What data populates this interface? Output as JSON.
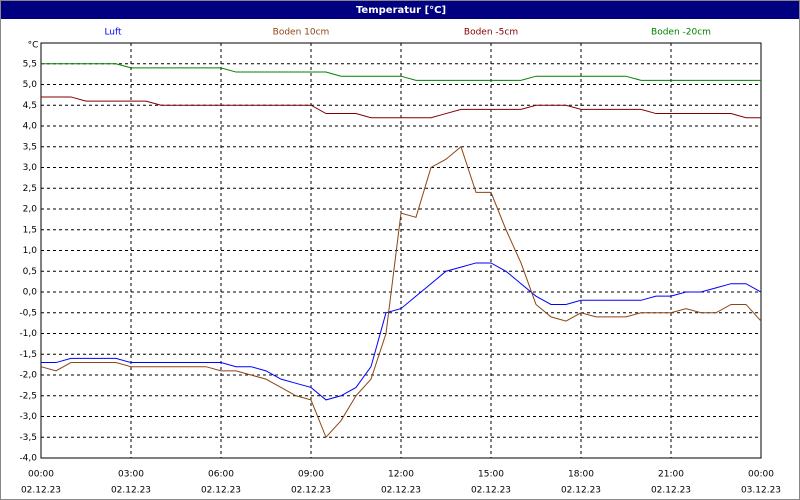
{
  "chart_data": {
    "type": "line",
    "title": "Temperatur [°C]",
    "y_label": "°C",
    "x": [
      0,
      0.5,
      1,
      1.5,
      2,
      2.5,
      3,
      3.5,
      4,
      4.5,
      5,
      5.5,
      6,
      6.5,
      7,
      7.5,
      8,
      8.5,
      9,
      9.5,
      10,
      10.5,
      11,
      11.5,
      12,
      12.5,
      13,
      13.5,
      14,
      14.5,
      15,
      15.5,
      16,
      16.5,
      17,
      17.5,
      18,
      18.5,
      19,
      19.5,
      20,
      20.5,
      21,
      21.5,
      22,
      22.5,
      23,
      23.5,
      24
    ],
    "series": [
      {
        "name": "Luft",
        "color": "#0000ff",
        "values": [
          -1.7,
          -1.7,
          -1.6,
          -1.6,
          -1.6,
          -1.6,
          -1.7,
          -1.7,
          -1.7,
          -1.7,
          -1.7,
          -1.7,
          -1.7,
          -1.8,
          -1.8,
          -1.9,
          -2.1,
          -2.2,
          -2.3,
          -2.6,
          -2.5,
          -2.3,
          -1.8,
          -0.5,
          -0.4,
          -0.1,
          0.2,
          0.5,
          0.6,
          0.7,
          0.7,
          0.5,
          0.2,
          -0.1,
          -0.3,
          -0.3,
          -0.2,
          -0.2,
          -0.2,
          -0.2,
          -0.2,
          -0.1,
          -0.1,
          0,
          0,
          0.1,
          0.2,
          0.2,
          0
        ]
      },
      {
        "name": "Boden 10cm",
        "color": "#8b4513",
        "values": [
          -1.8,
          -1.9,
          -1.7,
          -1.7,
          -1.7,
          -1.7,
          -1.8,
          -1.8,
          -1.8,
          -1.8,
          -1.8,
          -1.8,
          -1.9,
          -1.9,
          -2.0,
          -2.1,
          -2.3,
          -2.5,
          -2.6,
          -3.5,
          -3.1,
          -2.5,
          -2.1,
          -1.0,
          1.9,
          1.8,
          3.0,
          3.2,
          3.5,
          2.4,
          2.4,
          1.5,
          0.7,
          -0.3,
          -0.6,
          -0.7,
          -0.5,
          -0.6,
          -0.6,
          -0.6,
          -0.5,
          -0.5,
          -0.5,
          -0.4,
          -0.5,
          -0.5,
          -0.3,
          -0.3,
          -0.7
        ]
      },
      {
        "name": "Boden -5cm",
        "color": "#800000",
        "values": [
          4.7,
          4.7,
          4.7,
          4.6,
          4.6,
          4.6,
          4.6,
          4.6,
          4.5,
          4.5,
          4.5,
          4.5,
          4.5,
          4.5,
          4.5,
          4.5,
          4.5,
          4.5,
          4.5,
          4.3,
          4.3,
          4.3,
          4.2,
          4.2,
          4.2,
          4.2,
          4.2,
          4.3,
          4.4,
          4.4,
          4.4,
          4.4,
          4.4,
          4.5,
          4.5,
          4.5,
          4.4,
          4.4,
          4.4,
          4.4,
          4.4,
          4.3,
          4.3,
          4.3,
          4.3,
          4.3,
          4.3,
          4.2,
          4.2
        ]
      },
      {
        "name": "Boden -20cm",
        "color": "#008000",
        "values": [
          5.5,
          5.5,
          5.5,
          5.5,
          5.5,
          5.5,
          5.4,
          5.4,
          5.4,
          5.4,
          5.4,
          5.4,
          5.4,
          5.3,
          5.3,
          5.3,
          5.3,
          5.3,
          5.3,
          5.3,
          5.2,
          5.2,
          5.2,
          5.2,
          5.2,
          5.1,
          5.1,
          5.1,
          5.1,
          5.1,
          5.1,
          5.1,
          5.1,
          5.2,
          5.2,
          5.2,
          5.2,
          5.2,
          5.2,
          5.2,
          5.1,
          5.1,
          5.1,
          5.1,
          5.1,
          5.1,
          5.1,
          5.1,
          5.1
        ]
      }
    ],
    "xlim": [
      0,
      24
    ],
    "xticks": [
      {
        "value": 0,
        "label": "00:00"
      },
      {
        "value": 3,
        "label": "03:00"
      },
      {
        "value": 6,
        "label": "06:00"
      },
      {
        "value": 9,
        "label": "09:00"
      },
      {
        "value": 12,
        "label": "12:00"
      },
      {
        "value": 15,
        "label": "15:00"
      },
      {
        "value": 18,
        "label": "18:00"
      },
      {
        "value": 21,
        "label": "21:00"
      },
      {
        "value": 24,
        "label": "00:00"
      }
    ],
    "xtick_dates": [
      "02.12.23",
      "02.12.23",
      "02.12.23",
      "02.12.23",
      "02.12.23",
      "02.12.23",
      "02.12.23",
      "02.12.23",
      "03.12.23"
    ],
    "ylim": [
      -4,
      6
    ],
    "yticks": [
      {
        "value": -4,
        "label": "-4,0"
      },
      {
        "value": -3.5,
        "label": "-3,5"
      },
      {
        "value": -3,
        "label": "-3,0"
      },
      {
        "value": -2.5,
        "label": "-2,5"
      },
      {
        "value": -2,
        "label": "-2,0"
      },
      {
        "value": -1.5,
        "label": "-1,5"
      },
      {
        "value": -1,
        "label": "-1,0"
      },
      {
        "value": -0.5,
        "label": "-0,5"
      },
      {
        "value": 0,
        "label": "0,0"
      },
      {
        "value": 0.5,
        "label": "0,5"
      },
      {
        "value": 1,
        "label": "1,0"
      },
      {
        "value": 1.5,
        "label": "1,5"
      },
      {
        "value": 2,
        "label": "2,0"
      },
      {
        "value": 2.5,
        "label": "2,5"
      },
      {
        "value": 3,
        "label": "3,0"
      },
      {
        "value": 3.5,
        "label": "3,5"
      },
      {
        "value": 4,
        "label": "4,0"
      },
      {
        "value": 4.5,
        "label": "4,5"
      },
      {
        "value": 5,
        "label": "5,0"
      },
      {
        "value": 5.5,
        "label": "5,5"
      }
    ],
    "grid": true
  }
}
